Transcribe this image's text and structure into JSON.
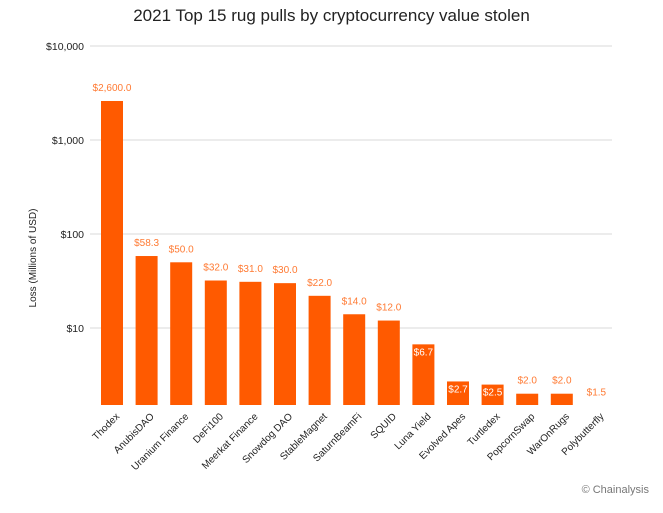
{
  "chart_data": {
    "type": "bar",
    "title": "2021 Top 15 rug pulls by cryptocurrency value stolen",
    "xlabel": "",
    "ylabel": "Loss (Millions of USD)",
    "y_scale": "log",
    "ylim": [
      1.5,
      10000
    ],
    "y_ticks": [
      {
        "value": 10,
        "label": "$10"
      },
      {
        "value": 100,
        "label": "$100"
      },
      {
        "value": 1000,
        "label": "$1,000"
      },
      {
        "value": 10000,
        "label": "$10,000"
      }
    ],
    "grid": true,
    "bar_color": "#ff5a00",
    "label_color": "#ff7a33",
    "categories": [
      "Thodex",
      "AnubisDAO",
      "Uranium Finance",
      "DeFi100",
      "Meerkat Finance",
      "Snowdog DAO",
      "StableMagnet",
      "SaturnBeamFi",
      "SQUID",
      "Luna Yield",
      "Evolved Apes",
      "Turtledex",
      "PopcornSwap",
      "WarOnRugs",
      "Polybutterfly"
    ],
    "values": [
      2600.0,
      58.3,
      50.0,
      32.0,
      31.0,
      30.0,
      22.0,
      14.0,
      12.0,
      6.7,
      2.7,
      2.5,
      2.0,
      2.0,
      1.5
    ],
    "data_labels": [
      "$2,600.0",
      "$58.3",
      "$50.0",
      "$32.0",
      "$31.0",
      "$30.0",
      "$22.0",
      "$14.0",
      "$12.0",
      "$6.7",
      "$2.7",
      "$2.5",
      "$2.0",
      "$2.0",
      "$1.5"
    ]
  },
  "footer": "© Chainalysis"
}
